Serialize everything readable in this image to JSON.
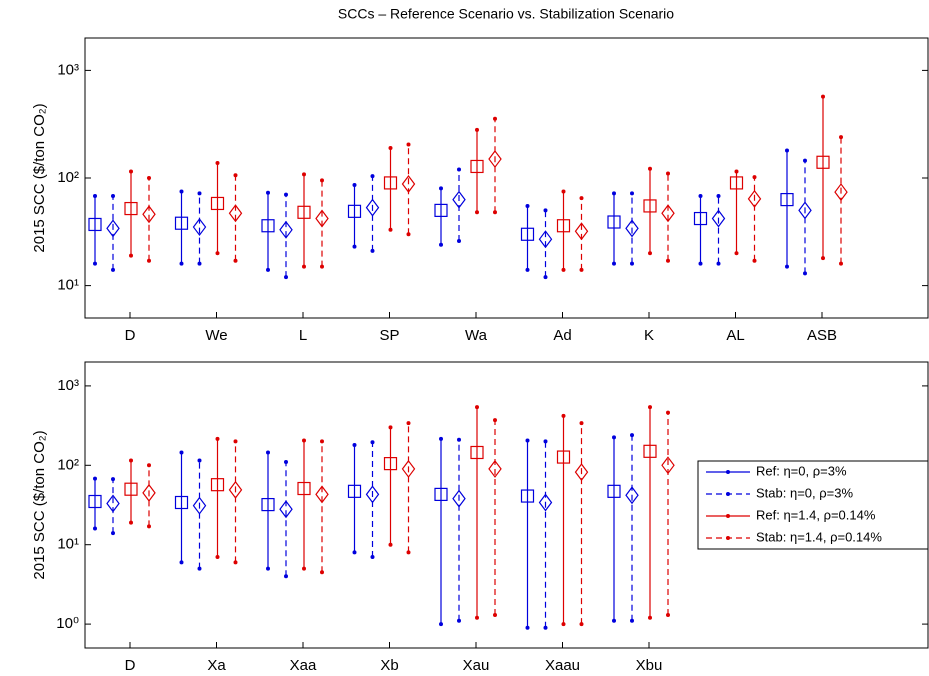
{
  "chart_data": [
    {
      "type": "errorbar",
      "title": "SCCs – Reference Scenario vs. Stabilization Scenario",
      "ylabel": "2015 SCC ($/ton CO₂)",
      "log_scale": true,
      "ylim": [
        5,
        2000
      ],
      "yticks": [
        {
          "value": 10,
          "label": "10¹"
        },
        {
          "value": 100,
          "label": "10²"
        },
        {
          "value": 1000,
          "label": "10³"
        }
      ],
      "categories": [
        "D",
        "We",
        "L",
        "SP",
        "Wa",
        "Ad",
        "K",
        "AL",
        "ASB"
      ],
      "series": [
        {
          "color": "#0000dd",
          "marker": "square",
          "dashed": false,
          "values": [
            37,
            38,
            36,
            49,
            50,
            30,
            39,
            42,
            63
          ],
          "low": [
            16,
            16,
            14,
            23,
            24,
            14,
            16,
            16,
            15
          ],
          "high": [
            68,
            75,
            73,
            86,
            80,
            55,
            72,
            68,
            180
          ]
        },
        {
          "color": "#0000dd",
          "marker": "diamond",
          "dashed": true,
          "values": [
            34,
            35,
            33,
            53,
            63,
            27,
            34,
            42,
            50
          ],
          "low": [
            14,
            16,
            12,
            21,
            26,
            12,
            16,
            16,
            13
          ],
          "high": [
            68,
            72,
            70,
            104,
            120,
            50,
            72,
            68,
            145
          ]
        },
        {
          "color": "#dd0000",
          "marker": "square",
          "dashed": false,
          "values": [
            52,
            58,
            48,
            90,
            128,
            36,
            55,
            90,
            140
          ],
          "low": [
            19,
            20,
            15,
            33,
            48,
            14,
            20,
            20,
            18
          ],
          "high": [
            115,
            138,
            108,
            190,
            280,
            75,
            122,
            115,
            570
          ]
        },
        {
          "color": "#dd0000",
          "marker": "diamond",
          "dashed": true,
          "values": [
            46,
            47,
            42,
            88,
            150,
            32,
            47,
            64,
            74
          ],
          "low": [
            17,
            17,
            15,
            30,
            48,
            14,
            17,
            17,
            16
          ],
          "high": [
            100,
            106,
            95,
            205,
            355,
            65,
            110,
            102,
            240
          ]
        }
      ]
    },
    {
      "type": "errorbar",
      "ylabel": "2015 SCC ($/ton CO₂)",
      "log_scale": true,
      "ylim": [
        0.5,
        2000
      ],
      "legend": "right",
      "yticks": [
        {
          "value": 1,
          "label": "10⁰"
        },
        {
          "value": 10,
          "label": "10¹"
        },
        {
          "value": 100,
          "label": "10²"
        },
        {
          "value": 1000,
          "label": "10³"
        }
      ],
      "categories": [
        "D",
        "Xa",
        "Xaa",
        "Xb",
        "Xau",
        "Xaau",
        "Xbu"
      ],
      "series": [
        {
          "name": "Ref: η=0, ρ=3%",
          "color": "#0000dd",
          "marker": "square",
          "dashed": false,
          "values": [
            35,
            34,
            32,
            47,
            43,
            41,
            47
          ],
          "low": [
            16,
            6,
            5,
            8,
            1,
            0.9,
            1.1
          ],
          "high": [
            68,
            145,
            145,
            180,
            215,
            205,
            225
          ]
        },
        {
          "name": "Stab: η=0, ρ=3%",
          "color": "#0000dd",
          "marker": "diamond",
          "dashed": true,
          "values": [
            33,
            31,
            28,
            43,
            38,
            34,
            42
          ],
          "low": [
            14,
            5,
            4,
            7,
            1.1,
            0.9,
            1.1
          ],
          "high": [
            67,
            115,
            110,
            195,
            210,
            200,
            240
          ]
        },
        {
          "name": "Ref: η=1.4, ρ=0.14%",
          "color": "#dd0000",
          "marker": "square",
          "dashed": false,
          "values": [
            50,
            57,
            51,
            105,
            145,
            127,
            150
          ],
          "low": [
            19,
            7,
            5,
            10,
            1.2,
            1,
            1.2
          ],
          "high": [
            115,
            215,
            205,
            300,
            540,
            420,
            540
          ]
        },
        {
          "name": "Stab: η=1.4, ρ=0.14%",
          "color": "#dd0000",
          "marker": "diamond",
          "dashed": true,
          "values": [
            45,
            49,
            43,
            90,
            90,
            82,
            100
          ],
          "low": [
            17,
            6,
            4.5,
            8,
            1.3,
            1,
            1.3
          ],
          "high": [
            100,
            200,
            200,
            340,
            370,
            340,
            460
          ]
        }
      ]
    }
  ]
}
